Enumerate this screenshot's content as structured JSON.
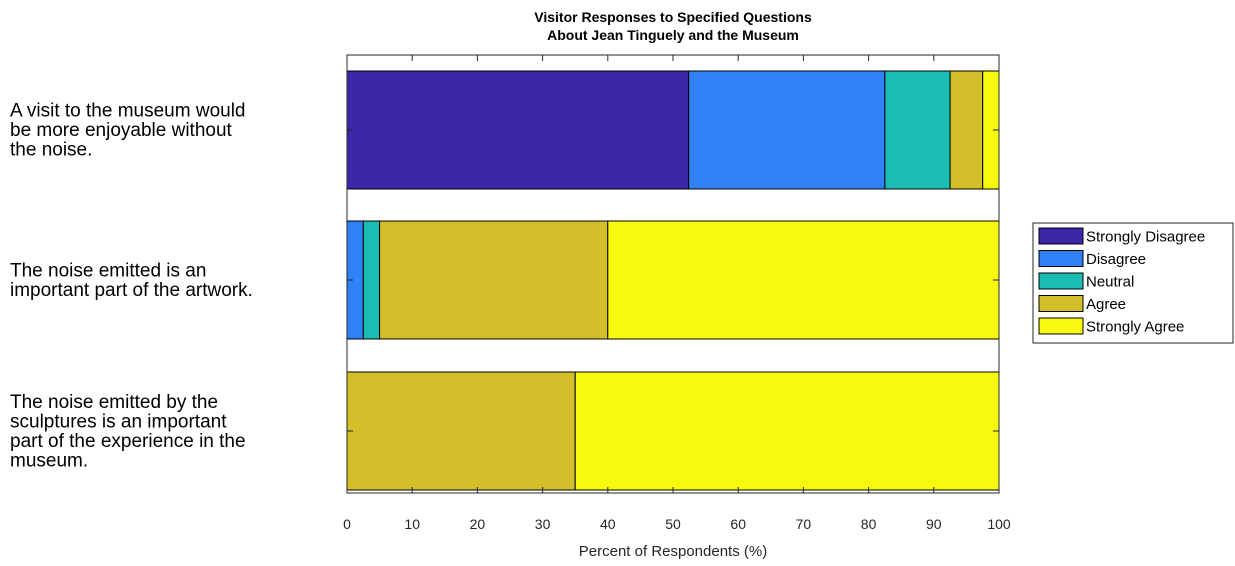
{
  "chart_data": {
    "type": "bar",
    "orientation": "horizontal",
    "stacked": true,
    "title": [
      "Visitor Responses to Specified Questions",
      "About Jean Tinguely and the Museum"
    ],
    "xlabel": "Percent of Respondents (%)",
    "ylabel": "",
    "xlim": [
      0,
      100
    ],
    "xticks": [
      "0",
      "10",
      "20",
      "30",
      "40",
      "50",
      "60",
      "70",
      "80",
      "90",
      "100"
    ],
    "grid": false,
    "legend_position": "right",
    "categories": [
      [
        "A visit to the museum would",
        "be more enjoyable without",
        "the noise."
      ],
      [
        "The noise emitted is an",
        "important part of the artwork."
      ],
      [
        "The noise emitted by the",
        "sculptures is an important",
        "part of the experience in the",
        "museum."
      ]
    ],
    "series": [
      {
        "name": "Strongly Disagree",
        "color": "#3e26a8",
        "values": [
          52.4,
          0,
          0
        ]
      },
      {
        "name": "Disagree",
        "color": "#3081f7",
        "values": [
          30.1,
          2.5,
          0
        ]
      },
      {
        "name": "Neutral",
        "color": "#1bbdb3",
        "values": [
          10.0,
          2.5,
          0
        ]
      },
      {
        "name": "Agree",
        "color": "#d2bf29",
        "values": [
          5.0,
          35.0,
          35.0
        ]
      },
      {
        "name": "Strongly Agree",
        "color": "#f8fa0d",
        "values": [
          2.5,
          60.0,
          65.0
        ]
      }
    ]
  }
}
